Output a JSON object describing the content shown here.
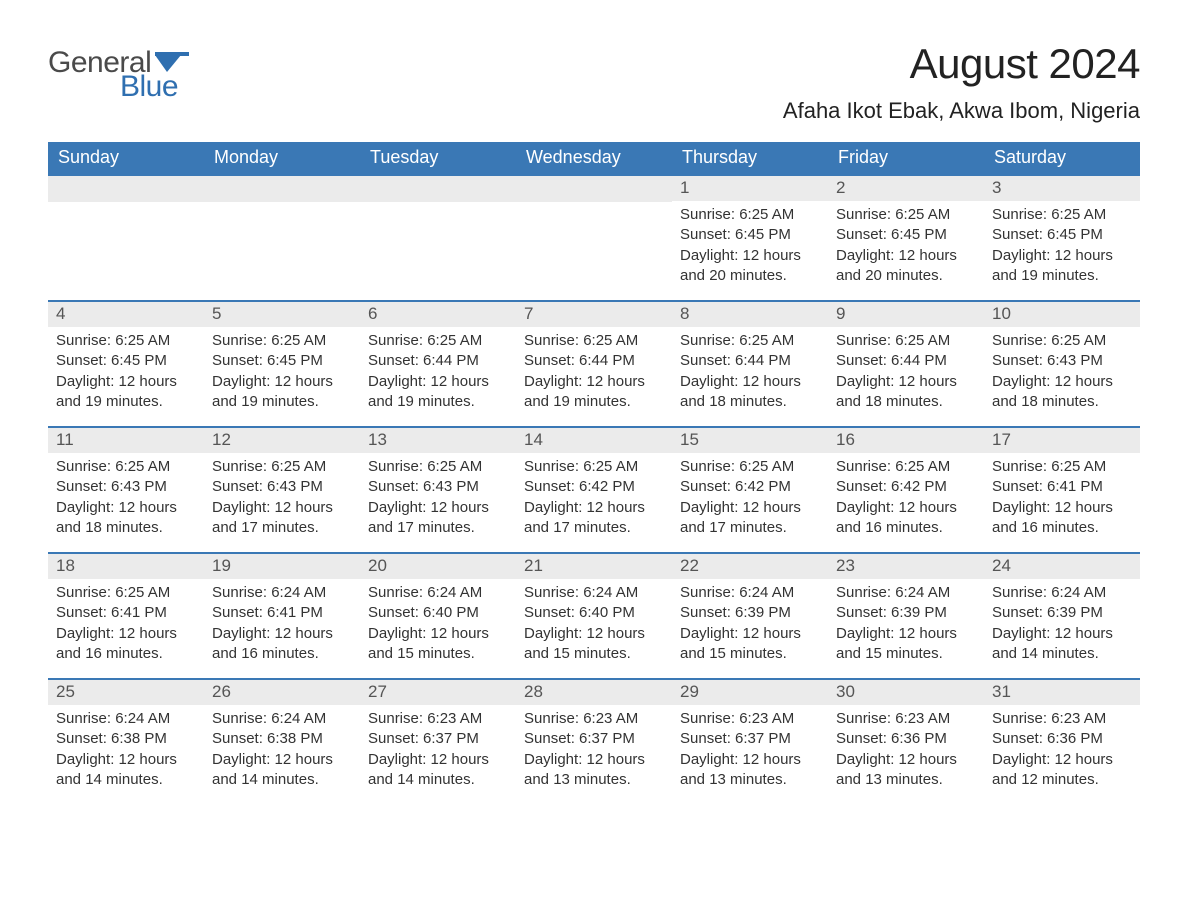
{
  "logo": {
    "text1": "General",
    "text2": "Blue",
    "accent_color": "#2f6fb0",
    "text_color": "#4a4a4a"
  },
  "title": "August 2024",
  "location": "Afaha Ikot Ebak, Akwa Ibom, Nigeria",
  "colors": {
    "header_bg": "#3a78b5",
    "header_text": "#ffffff",
    "daynum_bg": "#ebebeb",
    "daynum_text": "#555555",
    "body_text": "#333333",
    "divider": "#3a78b5",
    "page_bg": "#ffffff"
  },
  "typography": {
    "title_fontsize": 42,
    "location_fontsize": 22,
    "dow_fontsize": 18,
    "daynum_fontsize": 17,
    "body_fontsize": 15,
    "font_family": "Arial"
  },
  "layout": {
    "columns": 7,
    "rows": 5,
    "start_day_index": 4
  },
  "days_of_week": [
    "Sunday",
    "Monday",
    "Tuesday",
    "Wednesday",
    "Thursday",
    "Friday",
    "Saturday"
  ],
  "labels": {
    "sunrise": "Sunrise:",
    "sunset": "Sunset:",
    "daylight": "Daylight:"
  },
  "days": [
    {
      "n": 1,
      "sunrise": "6:25 AM",
      "sunset": "6:45 PM",
      "daylight": "12 hours and 20 minutes."
    },
    {
      "n": 2,
      "sunrise": "6:25 AM",
      "sunset": "6:45 PM",
      "daylight": "12 hours and 20 minutes."
    },
    {
      "n": 3,
      "sunrise": "6:25 AM",
      "sunset": "6:45 PM",
      "daylight": "12 hours and 19 minutes."
    },
    {
      "n": 4,
      "sunrise": "6:25 AM",
      "sunset": "6:45 PM",
      "daylight": "12 hours and 19 minutes."
    },
    {
      "n": 5,
      "sunrise": "6:25 AM",
      "sunset": "6:45 PM",
      "daylight": "12 hours and 19 minutes."
    },
    {
      "n": 6,
      "sunrise": "6:25 AM",
      "sunset": "6:44 PM",
      "daylight": "12 hours and 19 minutes."
    },
    {
      "n": 7,
      "sunrise": "6:25 AM",
      "sunset": "6:44 PM",
      "daylight": "12 hours and 19 minutes."
    },
    {
      "n": 8,
      "sunrise": "6:25 AM",
      "sunset": "6:44 PM",
      "daylight": "12 hours and 18 minutes."
    },
    {
      "n": 9,
      "sunrise": "6:25 AM",
      "sunset": "6:44 PM",
      "daylight": "12 hours and 18 minutes."
    },
    {
      "n": 10,
      "sunrise": "6:25 AM",
      "sunset": "6:43 PM",
      "daylight": "12 hours and 18 minutes."
    },
    {
      "n": 11,
      "sunrise": "6:25 AM",
      "sunset": "6:43 PM",
      "daylight": "12 hours and 18 minutes."
    },
    {
      "n": 12,
      "sunrise": "6:25 AM",
      "sunset": "6:43 PM",
      "daylight": "12 hours and 17 minutes."
    },
    {
      "n": 13,
      "sunrise": "6:25 AM",
      "sunset": "6:43 PM",
      "daylight": "12 hours and 17 minutes."
    },
    {
      "n": 14,
      "sunrise": "6:25 AM",
      "sunset": "6:42 PM",
      "daylight": "12 hours and 17 minutes."
    },
    {
      "n": 15,
      "sunrise": "6:25 AM",
      "sunset": "6:42 PM",
      "daylight": "12 hours and 17 minutes."
    },
    {
      "n": 16,
      "sunrise": "6:25 AM",
      "sunset": "6:42 PM",
      "daylight": "12 hours and 16 minutes."
    },
    {
      "n": 17,
      "sunrise": "6:25 AM",
      "sunset": "6:41 PM",
      "daylight": "12 hours and 16 minutes."
    },
    {
      "n": 18,
      "sunrise": "6:25 AM",
      "sunset": "6:41 PM",
      "daylight": "12 hours and 16 minutes."
    },
    {
      "n": 19,
      "sunrise": "6:24 AM",
      "sunset": "6:41 PM",
      "daylight": "12 hours and 16 minutes."
    },
    {
      "n": 20,
      "sunrise": "6:24 AM",
      "sunset": "6:40 PM",
      "daylight": "12 hours and 15 minutes."
    },
    {
      "n": 21,
      "sunrise": "6:24 AM",
      "sunset": "6:40 PM",
      "daylight": "12 hours and 15 minutes."
    },
    {
      "n": 22,
      "sunrise": "6:24 AM",
      "sunset": "6:39 PM",
      "daylight": "12 hours and 15 minutes."
    },
    {
      "n": 23,
      "sunrise": "6:24 AM",
      "sunset": "6:39 PM",
      "daylight": "12 hours and 15 minutes."
    },
    {
      "n": 24,
      "sunrise": "6:24 AM",
      "sunset": "6:39 PM",
      "daylight": "12 hours and 14 minutes."
    },
    {
      "n": 25,
      "sunrise": "6:24 AM",
      "sunset": "6:38 PM",
      "daylight": "12 hours and 14 minutes."
    },
    {
      "n": 26,
      "sunrise": "6:24 AM",
      "sunset": "6:38 PM",
      "daylight": "12 hours and 14 minutes."
    },
    {
      "n": 27,
      "sunrise": "6:23 AM",
      "sunset": "6:37 PM",
      "daylight": "12 hours and 14 minutes."
    },
    {
      "n": 28,
      "sunrise": "6:23 AM",
      "sunset": "6:37 PM",
      "daylight": "12 hours and 13 minutes."
    },
    {
      "n": 29,
      "sunrise": "6:23 AM",
      "sunset": "6:37 PM",
      "daylight": "12 hours and 13 minutes."
    },
    {
      "n": 30,
      "sunrise": "6:23 AM",
      "sunset": "6:36 PM",
      "daylight": "12 hours and 13 minutes."
    },
    {
      "n": 31,
      "sunrise": "6:23 AM",
      "sunset": "6:36 PM",
      "daylight": "12 hours and 12 minutes."
    }
  ]
}
